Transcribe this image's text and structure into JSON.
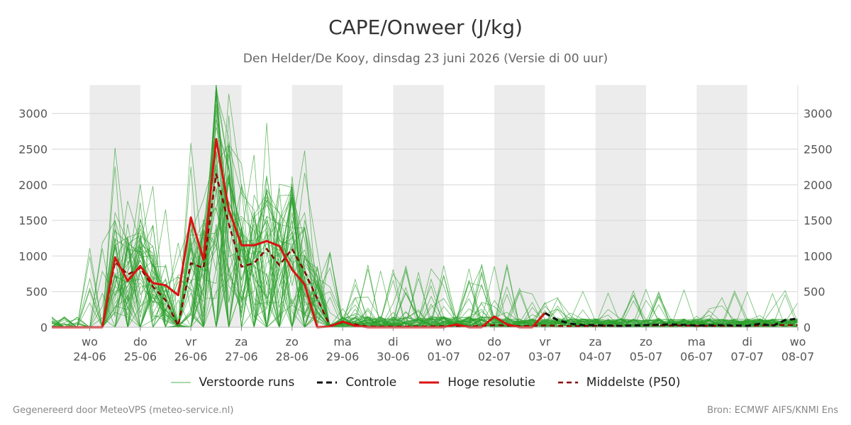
{
  "header": {
    "title": "CAPE/Onweer (J/kg)",
    "subtitle": "Den Helder/De Kooy, dinsdag 23 juni 2026 (Versie di 00 uur)"
  },
  "footer": {
    "left": "Gegenereerd door MeteoVPS (meteo-service.nl)",
    "right": "Bron: ECMWF AIFS/KNMI Ens"
  },
  "legend": [
    {
      "label": "Verstoorde runs",
      "color": "#2ca02c",
      "style": "thin"
    },
    {
      "label": "Controle",
      "color": "#111111",
      "style": "dashed"
    },
    {
      "label": "Hoge resolutie",
      "color": "#dd1111",
      "style": "solid"
    },
    {
      "label": "Middelste (P50)",
      "color": "#8b0000",
      "style": "dashed"
    }
  ],
  "chart_data": {
    "type": "line",
    "title": "CAPE/Onweer (J/kg)",
    "subtitle": "Den Helder/De Kooy, dinsdag 23 juni 2026 (Versie di 00 uur)",
    "ylim": [
      0,
      3400
    ],
    "y_ticks": [
      0,
      500,
      1000,
      1500,
      2000,
      2500,
      3000
    ],
    "xlim_days": [
      -0.75,
      14.0
    ],
    "x_ticks": [
      {
        "day": "wo",
        "date": "24-06"
      },
      {
        "day": "do",
        "date": "25-06"
      },
      {
        "day": "vr",
        "date": "26-06"
      },
      {
        "day": "za",
        "date": "27-06"
      },
      {
        "day": "zo",
        "date": "28-06"
      },
      {
        "day": "ma",
        "date": "29-06"
      },
      {
        "day": "di",
        "date": "30-06"
      },
      {
        "day": "wo",
        "date": "01-07"
      },
      {
        "day": "do",
        "date": "02-07"
      },
      {
        "day": "vr",
        "date": "03-07"
      },
      {
        "day": "za",
        "date": "04-07"
      },
      {
        "day": "zo",
        "date": "05-07"
      },
      {
        "day": "ma",
        "date": "06-07"
      },
      {
        "day": "di",
        "date": "07-07"
      },
      {
        "day": "wo",
        "date": "08-07"
      }
    ],
    "grid": "horizontal",
    "legend_position": "bottom",
    "ensemble_member_count": 50,
    "series": [
      {
        "name": "Hoge resolutie",
        "color": "#dd1111",
        "points": [
          [
            -0.75,
            0
          ],
          [
            -0.5,
            0
          ],
          [
            -0.25,
            0
          ],
          [
            0,
            0
          ],
          [
            0.25,
            0
          ],
          [
            0.5,
            980
          ],
          [
            0.75,
            650
          ],
          [
            1,
            860
          ],
          [
            1.25,
            620
          ],
          [
            1.5,
            590
          ],
          [
            1.75,
            450
          ],
          [
            2,
            1540
          ],
          [
            2.25,
            950
          ],
          [
            2.5,
            2640
          ],
          [
            2.75,
            1650
          ],
          [
            3,
            1150
          ],
          [
            3.25,
            1150
          ],
          [
            3.5,
            1210
          ],
          [
            3.75,
            1140
          ],
          [
            4,
            810
          ],
          [
            4.25,
            600
          ],
          [
            4.5,
            0
          ],
          [
            4.75,
            10
          ],
          [
            5,
            80
          ],
          [
            5.25,
            20
          ],
          [
            5.5,
            0
          ],
          [
            6,
            0
          ],
          [
            6.5,
            0
          ],
          [
            7,
            0
          ],
          [
            7.25,
            40
          ],
          [
            7.5,
            0
          ],
          [
            7.75,
            0
          ],
          [
            8,
            150
          ],
          [
            8.25,
            40
          ],
          [
            8.5,
            0
          ],
          [
            8.75,
            0
          ],
          [
            9,
            200
          ]
        ]
      },
      {
        "name": "Middelste (P50)",
        "color": "#8b0000",
        "points": [
          [
            -0.75,
            0
          ],
          [
            -0.5,
            0
          ],
          [
            -0.25,
            0
          ],
          [
            0,
            0
          ],
          [
            0.25,
            0
          ],
          [
            0.5,
            920
          ],
          [
            0.75,
            740
          ],
          [
            1,
            830
          ],
          [
            1.25,
            570
          ],
          [
            1.5,
            380
          ],
          [
            1.75,
            20
          ],
          [
            2,
            900
          ],
          [
            2.25,
            830
          ],
          [
            2.5,
            2150
          ],
          [
            2.75,
            1450
          ],
          [
            3,
            850
          ],
          [
            3.25,
            900
          ],
          [
            3.5,
            1100
          ],
          [
            3.75,
            870
          ],
          [
            4,
            1100
          ],
          [
            4.25,
            780
          ],
          [
            4.5,
            400
          ],
          [
            4.75,
            20
          ],
          [
            5,
            70
          ],
          [
            5.25,
            40
          ],
          [
            5.5,
            10
          ],
          [
            6,
            10
          ],
          [
            6.5,
            10
          ],
          [
            7,
            15
          ],
          [
            7.5,
            10
          ],
          [
            8,
            30
          ],
          [
            8.5,
            15
          ],
          [
            9,
            25
          ],
          [
            9.5,
            15
          ],
          [
            10,
            20
          ],
          [
            10.5,
            20
          ],
          [
            11,
            30
          ],
          [
            11.5,
            25
          ],
          [
            12,
            20
          ],
          [
            12.5,
            20
          ],
          [
            13,
            20
          ],
          [
            13.5,
            30
          ],
          [
            14,
            30
          ]
        ]
      },
      {
        "name": "Controle",
        "color": "#111111",
        "points": [
          [
            9,
            200
          ],
          [
            9.25,
            100
          ],
          [
            9.5,
            50
          ],
          [
            9.75,
            30
          ],
          [
            10,
            30
          ],
          [
            10.5,
            20
          ],
          [
            11,
            30
          ],
          [
            11.5,
            40
          ],
          [
            12,
            25
          ],
          [
            12.5,
            30
          ],
          [
            13,
            20
          ],
          [
            13.25,
            50
          ],
          [
            13.5,
            20
          ],
          [
            13.75,
            100
          ],
          [
            14,
            120
          ]
        ]
      }
    ]
  }
}
